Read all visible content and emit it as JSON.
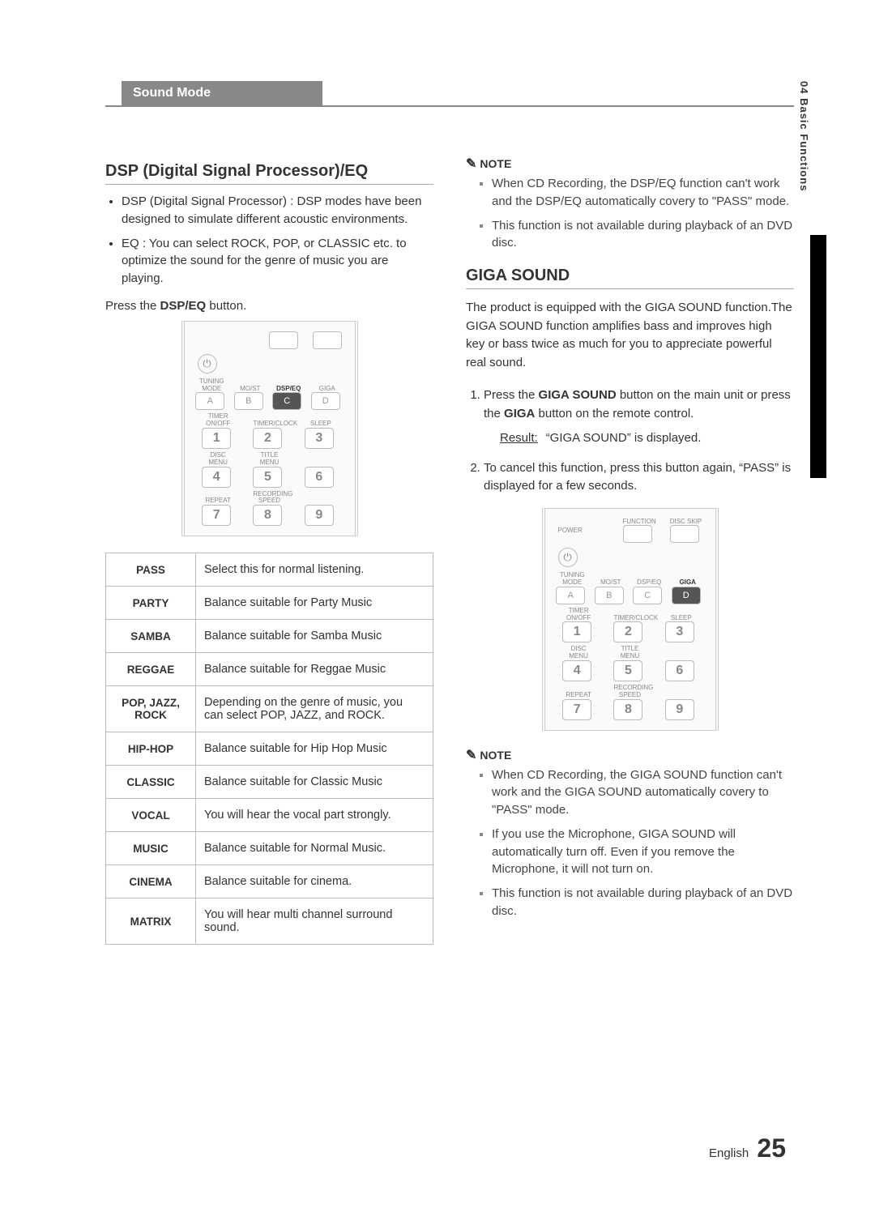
{
  "sideTab": "04  Basic Functions",
  "sectionHeader": "Sound Mode",
  "left": {
    "title": "DSP (Digital Signal Processor)/EQ",
    "bullets": [
      "DSP (Digital Signal Processor) : DSP modes have been designed to simulate different acoustic environments.",
      "EQ : You can select ROCK, POP, or CLASSIC etc. to optimize the sound for the genre of music you are playing."
    ],
    "instructionPrefix": "Press the ",
    "instructionBold": "DSP/EQ",
    "instructionSuffix": " button.",
    "remoteHighlight": "C",
    "modes": [
      {
        "k": "PASS",
        "v": "Select this for normal listening."
      },
      {
        "k": "PARTY",
        "v": "Balance suitable for Party Music"
      },
      {
        "k": "SAMBA",
        "v": "Balance suitable for Samba Music"
      },
      {
        "k": "REGGAE",
        "v": "Balance suitable for Reggae Music"
      },
      {
        "k": "POP, JAZZ, ROCK",
        "v": "Depending on the genre of music, you can select POP, JAZZ, and ROCK."
      },
      {
        "k": "HIP-HOP",
        "v": "Balance suitable for Hip Hop Music"
      },
      {
        "k": "CLASSIC",
        "v": "Balance suitable for Classic Music"
      },
      {
        "k": "VOCAL",
        "v": "You will hear the vocal part strongly."
      },
      {
        "k": "MUSIC",
        "v": "Balance suitable for Normal Music."
      },
      {
        "k": "CINEMA",
        "v": "Balance suitable for cinema."
      },
      {
        "k": "MATRIX",
        "v": "You will hear multi channel surround sound."
      }
    ]
  },
  "right": {
    "noteLabel": "NOTE",
    "notes1": [
      "When CD Recording, the DSP/EQ function can't work and the DSP/EQ automatically covery to \"PASS\" mode.",
      "This function is not available during playback of an DVD disc."
    ],
    "title": "GIGA SOUND",
    "intro": "The product is equipped with the GIGA SOUND function.The GIGA SOUND function amplifies bass and improves high key or bass twice as much for you to appreciate powerful real sound.",
    "steps": {
      "s1_a": "Press the ",
      "s1_b": "GIGA SOUND",
      "s1_c": " button on the main unit or press the ",
      "s1_d": "GIGA",
      "s1_e": " button on the remote control.",
      "resultLabel": "Result:",
      "resultText": "“GIGA SOUND” is displayed.",
      "s2": "To cancel this function, press this button again, “PASS” is displayed for a few seconds."
    },
    "remoteHighlight": "D",
    "notes2": [
      "When CD Recording, the GIGA SOUND function can't work and the GIGA SOUND automatically covery to \"PASS\" mode.",
      "If you use the Microphone, GIGA SOUND will automatically turn off. Even if you remove the Microphone, it will not turn on.",
      "This function is not available during playback of an DVD disc."
    ]
  },
  "remote": {
    "power": "POWER",
    "function": "FUNCTION",
    "discskip": "DISC SKIP",
    "r1": [
      "TUNING MODE",
      "MO/ST",
      "DSP/EQ",
      "GIGA"
    ],
    "r1b": [
      "A",
      "B",
      "C",
      "D"
    ],
    "r2": [
      "TIMER ON/OFF",
      "TIMER/CLOCK",
      "SLEEP"
    ],
    "r2b": [
      "1",
      "2",
      "3"
    ],
    "r3": [
      "DISC MENU",
      "TITLE MENU",
      ""
    ],
    "r3b": [
      "4",
      "5",
      "6"
    ],
    "r4": [
      "REPEAT",
      "RECORDING SPEED",
      ""
    ],
    "r4b": [
      "7",
      "8",
      "9"
    ]
  },
  "footer": {
    "lang": "English",
    "page": "25"
  }
}
